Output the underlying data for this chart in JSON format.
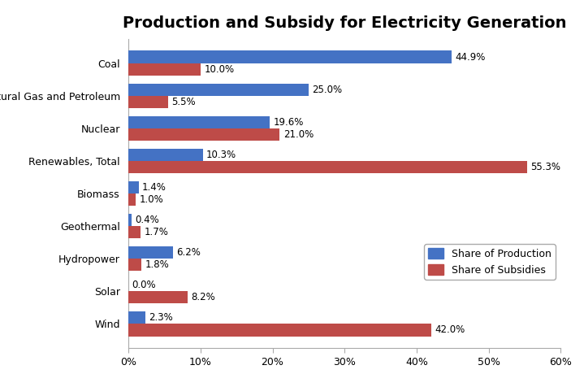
{
  "title": "Production and Subsidy for Electricity Generation",
  "categories": [
    "Coal",
    "Natural Gas and Petroleum",
    "Nuclear",
    "Renewables, Total",
    "Biomass",
    "Geothermal",
    "Hydropower",
    "Solar",
    "Wind"
  ],
  "production": [
    44.9,
    25.0,
    19.6,
    10.3,
    1.4,
    0.4,
    6.2,
    0.0,
    2.3
  ],
  "subsidies": [
    10.0,
    5.5,
    21.0,
    55.3,
    1.0,
    1.7,
    1.8,
    8.2,
    42.0
  ],
  "production_color": "#4472C4",
  "subsidies_color": "#BE4B48",
  "xlim": [
    0,
    60
  ],
  "xtick_values": [
    0,
    10,
    20,
    30,
    40,
    50,
    60
  ],
  "xtick_labels": [
    "0%",
    "10%",
    "20%",
    "30%",
    "40%",
    "50%",
    "60%"
  ],
  "legend_production": "Share of Production",
  "legend_subsidies": "Share of Subsidies",
  "bar_height": 0.38,
  "background_color": "#ffffff",
  "title_fontsize": 14,
  "label_fontsize": 9,
  "tick_fontsize": 9,
  "value_fontsize": 8.5
}
